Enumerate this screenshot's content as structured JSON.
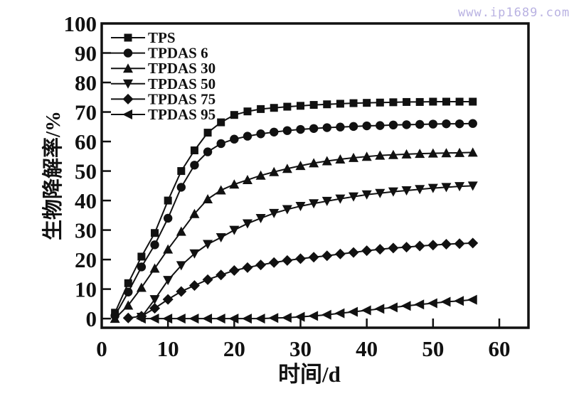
{
  "watermark": {
    "text": "www.ip1689.com"
  },
  "colors": {
    "ink": "#111111",
    "watermark": "#b9b2e2",
    "background": "#ffffff"
  },
  "chart_data": {
    "type": "line",
    "title": "",
    "xlabel": "时间/d",
    "ylabel": "生物降解率/%",
    "xlim": [
      0,
      64.4
    ],
    "ylim": [
      -3.1,
      100
    ],
    "xticks": [
      0,
      10,
      20,
      30,
      40,
      50,
      60
    ],
    "yticks": [
      0,
      10,
      20,
      30,
      40,
      50,
      60,
      70,
      80,
      90,
      100
    ],
    "grid": false,
    "legend_position": "upper-left-inside",
    "series": [
      {
        "name": "TPS",
        "marker": "square",
        "x": [
          2,
          4,
          6,
          8,
          10,
          12,
          14,
          16,
          18,
          20,
          22,
          24,
          26,
          28,
          30,
          32,
          34,
          36,
          38,
          40,
          42,
          44,
          46,
          48,
          50,
          52,
          54,
          56
        ],
        "y": [
          2,
          12,
          21,
          29,
          40,
          50,
          57,
          63,
          66.5,
          69,
          70.2,
          71,
          71.4,
          71.8,
          72.1,
          72.4,
          72.6,
          72.8,
          73,
          73.1,
          73.2,
          73.3,
          73.4,
          73.4,
          73.5,
          73.5,
          73.5,
          73.5
        ]
      },
      {
        "name": "TPDAS 6",
        "marker": "circle",
        "x": [
          2,
          4,
          6,
          8,
          10,
          12,
          14,
          16,
          18,
          20,
          22,
          24,
          26,
          28,
          30,
          32,
          34,
          36,
          38,
          40,
          42,
          44,
          46,
          48,
          50,
          52,
          54,
          56
        ],
        "y": [
          1,
          9,
          17.5,
          25,
          34,
          44.5,
          52,
          56.5,
          59.3,
          60.8,
          61.8,
          62.6,
          63.2,
          63.7,
          64.1,
          64.4,
          64.7,
          64.9,
          65.1,
          65.3,
          65.4,
          65.6,
          65.7,
          65.8,
          65.9,
          66,
          66,
          66.1
        ]
      },
      {
        "name": "TPDAS 30",
        "marker": "triangle-up",
        "x": [
          2,
          4,
          6,
          8,
          10,
          12,
          14,
          16,
          18,
          20,
          22,
          24,
          26,
          28,
          30,
          32,
          34,
          36,
          38,
          40,
          42,
          44,
          46,
          48,
          50,
          52,
          54,
          56
        ],
        "y": [
          0,
          4.5,
          10.5,
          17,
          23.5,
          29.5,
          35.5,
          40.5,
          43.5,
          45.5,
          47,
          48.5,
          49.7,
          50.8,
          51.8,
          52.7,
          53.4,
          54,
          54.5,
          54.9,
          55.3,
          55.5,
          55.7,
          55.9,
          56,
          56.1,
          56.2,
          56.3
        ]
      },
      {
        "name": "TPDAS 50",
        "marker": "triangle-down",
        "x": [
          6,
          8,
          10,
          12,
          14,
          16,
          18,
          20,
          22,
          24,
          26,
          28,
          30,
          32,
          34,
          36,
          38,
          40,
          42,
          44,
          46,
          48,
          50,
          52,
          54,
          56
        ],
        "y": [
          0.5,
          6.5,
          13,
          18,
          22,
          25.2,
          27.5,
          30,
          32.2,
          34,
          35.7,
          37,
          38.1,
          39,
          39.8,
          40.6,
          41.3,
          42,
          42.5,
          43,
          43.4,
          43.8,
          44.2,
          44.5,
          44.8,
          45
        ]
      },
      {
        "name": "TPDAS 75",
        "marker": "diamond",
        "x": [
          4,
          6,
          8,
          10,
          12,
          14,
          16,
          18,
          20,
          22,
          24,
          26,
          28,
          30,
          32,
          34,
          36,
          38,
          40,
          42,
          44,
          46,
          48,
          50,
          52,
          54,
          56
        ],
        "y": [
          0.2,
          0.8,
          3.5,
          6.5,
          9.2,
          11.2,
          13.2,
          14.8,
          16.3,
          17.3,
          18.2,
          19,
          19.7,
          20.3,
          20.8,
          21.3,
          21.9,
          22.4,
          23,
          23.5,
          23.9,
          24.2,
          24.6,
          24.9,
          25.2,
          25.4,
          25.6
        ]
      },
      {
        "name": "TPDAS 95",
        "marker": "triangle-left",
        "x": [
          6,
          8,
          10,
          12,
          14,
          16,
          18,
          20,
          22,
          24,
          26,
          28,
          30,
          32,
          34,
          36,
          38,
          40,
          42,
          44,
          46,
          48,
          50,
          52,
          54,
          56
        ],
        "y": [
          0,
          0,
          0,
          0,
          0,
          0,
          0,
          0,
          0,
          0,
          0.2,
          0.3,
          0.6,
          0.9,
          1.3,
          1.8,
          2.3,
          2.8,
          3.3,
          3.8,
          4.3,
          4.8,
          5.2,
          5.7,
          6,
          6.4
        ]
      }
    ]
  }
}
